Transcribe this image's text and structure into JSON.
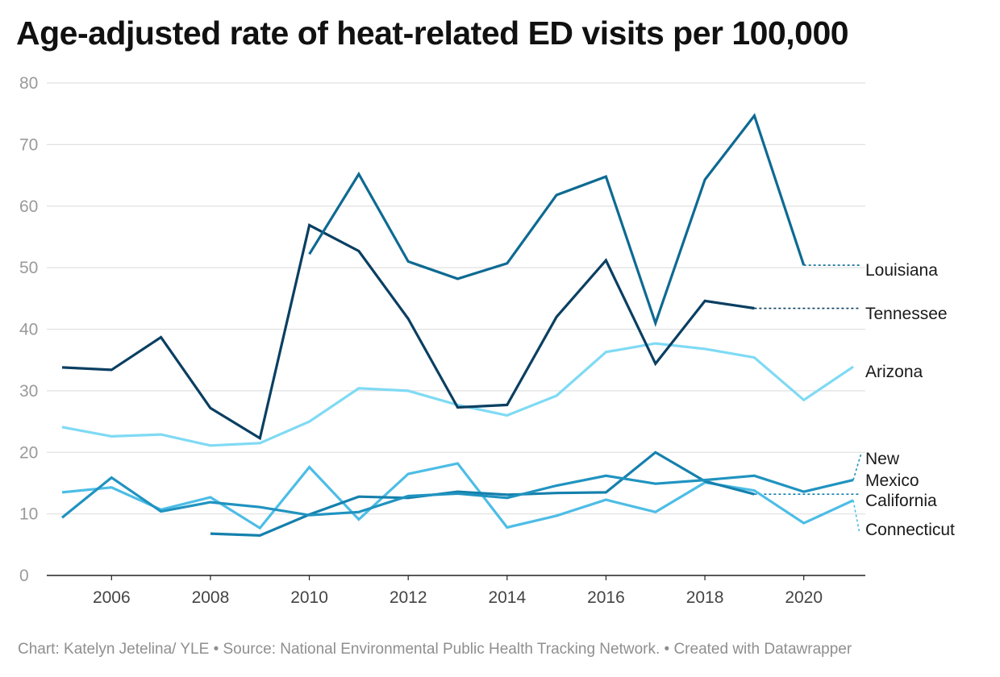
{
  "title": "Age-adjusted rate of heat-related ED visits per 100,000",
  "footer": "Chart: Katelyn Jetelina/ YLE • Source: National Environmental Public Health Tracking Network. • Created with Datawrapper",
  "chart_data": {
    "type": "line",
    "title": "Age-adjusted rate of heat-related ED visits per 100,000",
    "xlabel": "",
    "ylabel": "",
    "xlim": [
      2005,
      2021
    ],
    "ylim": [
      0,
      80
    ],
    "y_ticks": [
      0,
      10,
      20,
      30,
      40,
      50,
      60,
      70,
      80
    ],
    "x_ticks": [
      2006,
      2008,
      2010,
      2012,
      2014,
      2016,
      2018,
      2020
    ],
    "grid": true,
    "legend": "direct labels at right",
    "series": [
      {
        "name": "Louisiana",
        "color": "#0e6a92",
        "x": [
          2010,
          2011,
          2012,
          2013,
          2014,
          2015,
          2016,
          2017,
          2018,
          2019,
          2020
        ],
        "values": [
          52.2,
          65.2,
          51,
          48.2,
          50.7,
          61.8,
          64.8,
          41,
          64.3,
          74.7,
          50.4
        ]
      },
      {
        "name": "Tennessee",
        "color": "#0a3f62",
        "x": [
          2005,
          2006,
          2007,
          2008,
          2009,
          2010,
          2011,
          2012,
          2013,
          2014,
          2015,
          2016,
          2017,
          2018,
          2019
        ],
        "values": [
          33.8,
          33.4,
          38.7,
          27.2,
          22.3,
          56.9,
          52.7,
          41.7,
          27.3,
          27.7,
          42,
          51.2,
          34.4,
          44.6,
          43.4
        ]
      },
      {
        "name": "Arizona",
        "color": "#7fdaf4",
        "x": [
          2005,
          2006,
          2007,
          2008,
          2009,
          2010,
          2011,
          2012,
          2013,
          2014,
          2015,
          2016,
          2017,
          2018,
          2019,
          2020,
          2021
        ],
        "values": [
          24.1,
          22.6,
          22.9,
          21.1,
          21.5,
          25,
          30.4,
          30,
          27.7,
          26,
          29.2,
          36.3,
          37.7,
          36.8,
          35.4,
          28.5,
          33.9
        ]
      },
      {
        "name": "New Mexico",
        "color": "#2093c0",
        "x": [
          2005,
          2006,
          2007,
          2008,
          2009,
          2010,
          2011,
          2012,
          2013,
          2014,
          2015,
          2016,
          2017,
          2018,
          2019,
          2020,
          2021
        ],
        "values": [
          9.4,
          15.9,
          10.4,
          11.9,
          11.1,
          9.8,
          10.3,
          12.9,
          13.3,
          12.6,
          14.6,
          16.2,
          14.9,
          15.5,
          16.2,
          13.6,
          15.5
        ]
      },
      {
        "name": "California",
        "color": "#1580ad",
        "x": [
          2008,
          2009,
          2010,
          2011,
          2012,
          2013,
          2014,
          2015,
          2016,
          2017,
          2018,
          2019
        ],
        "values": [
          6.8,
          6.5,
          9.9,
          12.8,
          12.6,
          13.6,
          13.1,
          13.4,
          13.5,
          20,
          15.3,
          13.2
        ]
      },
      {
        "name": "Connecticut",
        "color": "#4dbde6",
        "x": [
          2005,
          2006,
          2007,
          2008,
          2009,
          2010,
          2011,
          2012,
          2013,
          2014,
          2015,
          2016,
          2017,
          2018,
          2019,
          2020,
          2021
        ],
        "values": [
          13.5,
          14.3,
          10.7,
          12.7,
          7.7,
          17.6,
          9.1,
          16.5,
          18.2,
          7.8,
          9.7,
          12.3,
          10.3,
          15.1,
          13.8,
          8.5,
          12.2
        ]
      }
    ],
    "labels": [
      {
        "series": "Louisiana",
        "lines": [
          "Louisiana"
        ]
      },
      {
        "series": "Tennessee",
        "lines": [
          "Tennessee"
        ]
      },
      {
        "series": "Arizona",
        "lines": [
          "Arizona"
        ]
      },
      {
        "series": "New Mexico",
        "lines": [
          "New",
          "Mexico"
        ]
      },
      {
        "series": "California",
        "lines": [
          "California"
        ]
      },
      {
        "series": "Connecticut",
        "lines": [
          "Connecticut"
        ]
      }
    ]
  }
}
